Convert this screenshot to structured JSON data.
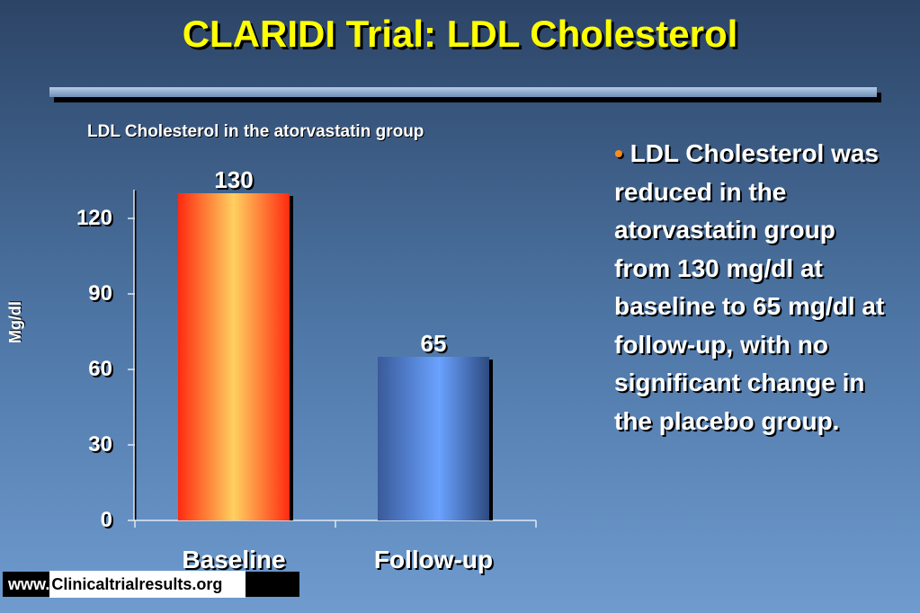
{
  "slide": {
    "title": "CLARIDI Trial: LDL Cholesterol",
    "bullet": "LDL Cholesterol was reduced in the atorvastatin group from 130 mg/dl at baseline to 65 mg/dl at follow-up, with no significant change in the placebo group.",
    "bullet_mark": "•",
    "footer_www": "www.",
    "footer_site": "Clinicaltrialresults.org"
  },
  "chart_data": {
    "type": "bar",
    "title": "LDL Cholesterol in the atorvastatin group",
    "ylabel": "Mg/dl",
    "xlabel": "",
    "categories": [
      "Baseline",
      "Follow-up"
    ],
    "values": [
      130,
      65
    ],
    "data_labels": [
      "130",
      "65"
    ],
    "ylim": [
      0,
      130
    ],
    "yticks": [
      0,
      30,
      60,
      90,
      120
    ],
    "grid": false,
    "bar_colors": [
      "#ff3a1a",
      "#5b8fe8"
    ]
  }
}
